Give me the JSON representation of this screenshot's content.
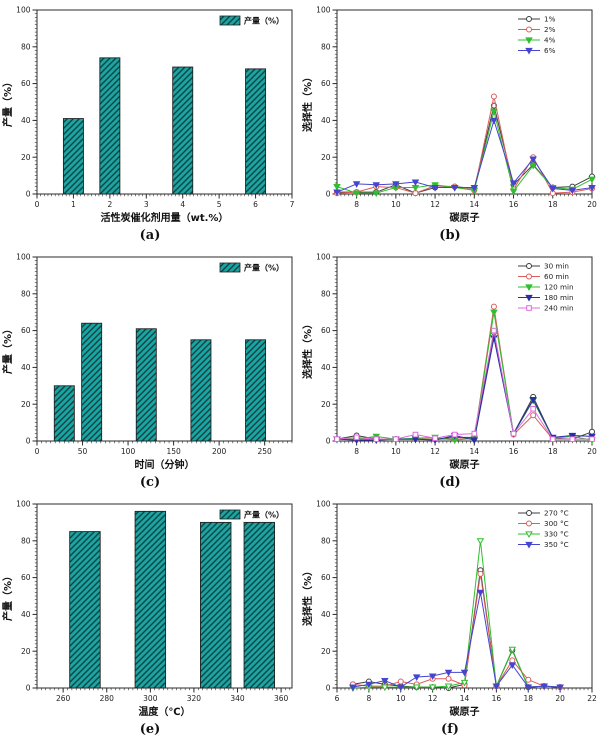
{
  "page": {
    "background": "#ffffff"
  },
  "colors": {
    "bar_fill": "#1aa5a2",
    "bar_hatch": "#0d4344",
    "axis": "#2b2b2b",
    "series_black": "#3c3c3c",
    "series_red": "#dd5c5c",
    "series_green": "#2fbf2f",
    "series_blue": "#4545cf",
    "series_navy": "#2a2fa8",
    "series_magenta": "#e06ae0"
  },
  "chart_data": [
    {
      "id": "a",
      "type": "bar",
      "caption": "(a)",
      "xlabel": "活性炭催化剂用量（wt.%）",
      "ylabel": "产量（%）",
      "legend_label": "产量（%）",
      "legend_position": "top-right",
      "xlim": [
        0,
        7
      ],
      "ylim": [
        0,
        100
      ],
      "grid": false,
      "xticks": [
        0,
        1,
        2,
        3,
        4,
        5,
        6,
        7
      ],
      "yticks": [
        0,
        20,
        40,
        60,
        80,
        100
      ],
      "x_minor": 0.1,
      "y_minor": 2,
      "bar_color": "#1aa5a2",
      "hatch_color": "#0d4344",
      "bars": {
        "x": [
          1,
          2,
          4,
          6
        ],
        "values": [
          41,
          74,
          69,
          68
        ],
        "width": 0.55
      }
    },
    {
      "id": "b",
      "type": "line",
      "caption": "(b)",
      "xlabel": "碳原子",
      "ylabel": "选择性（%）",
      "legend_position": "top-right",
      "xlim": [
        7,
        20
      ],
      "ylim": [
        0,
        100
      ],
      "grid": false,
      "xticks": [
        8,
        10,
        12,
        14,
        16,
        18,
        20
      ],
      "yticks": [
        0,
        20,
        40,
        60,
        80,
        100
      ],
      "x_minor": 0.2,
      "y_minor": 2,
      "x": [
        7,
        8,
        9,
        10,
        11,
        12,
        13,
        14,
        15,
        16,
        17,
        18,
        19,
        20
      ],
      "series": [
        {
          "name": "1%",
          "color": "#3c3c3c",
          "marker": "circle",
          "fill": "open",
          "values": [
            1,
            1,
            1,
            5,
            0.5,
            3.5,
            4,
            3,
            48,
            5,
            16,
            3.5,
            4,
            9.5
          ]
        },
        {
          "name": "2%",
          "color": "#dd5c5c",
          "marker": "circle",
          "fill": "open",
          "values": [
            0.5,
            1,
            4,
            3.5,
            0.5,
            4.5,
            4,
            2,
            53,
            2.5,
            20,
            0.5,
            1,
            3
          ]
        },
        {
          "name": "4%",
          "color": "#2fbf2f",
          "marker": "triangle-down",
          "fill": "filled",
          "values": [
            4,
            0.5,
            0.5,
            3.5,
            3.5,
            5,
            3.5,
            2,
            45,
            1.5,
            15.5,
            3.5,
            2.5,
            8
          ]
        },
        {
          "name": "6%",
          "color": "#4545cf",
          "marker": "triangle-down",
          "fill": "filled",
          "values": [
            1,
            5.5,
            5,
            5.5,
            6.5,
            3.5,
            3.5,
            3.5,
            40,
            6,
            19,
            3,
            2,
            3.5
          ]
        }
      ]
    },
    {
      "id": "c",
      "type": "bar",
      "caption": "(c)",
      "xlabel": "时间（分钟）",
      "ylabel": "产量（%）",
      "legend_label": "产量（%）",
      "legend_position": "top-right",
      "xlim": [
        0,
        280
      ],
      "ylim": [
        0,
        100
      ],
      "grid": false,
      "xticks": [
        0,
        50,
        100,
        150,
        200,
        250
      ],
      "yticks": [
        0,
        20,
        40,
        60,
        80,
        100
      ],
      "x_minor": 5,
      "y_minor": 2,
      "bar_color": "#1aa5a2",
      "hatch_color": "#0d4344",
      "bars": {
        "x": [
          30,
          60,
          120,
          180,
          240
        ],
        "values": [
          30,
          64,
          61,
          55,
          55
        ],
        "width": 22
      }
    },
    {
      "id": "d",
      "type": "line",
      "caption": "(d)",
      "xlabel": "碳原子",
      "ylabel": "选择性（%）",
      "legend_position": "top-right",
      "xlim": [
        7,
        20
      ],
      "ylim": [
        0,
        100
      ],
      "grid": false,
      "xticks": [
        8,
        10,
        12,
        14,
        16,
        18,
        20
      ],
      "yticks": [
        0,
        20,
        40,
        60,
        80,
        100
      ],
      "x_minor": 0.2,
      "y_minor": 2,
      "x": [
        7,
        8,
        9,
        10,
        11,
        12,
        13,
        14,
        15,
        16,
        17,
        18,
        19,
        20
      ],
      "series": [
        {
          "name": "30 min",
          "color": "#3c3c3c",
          "marker": "circle",
          "fill": "open",
          "values": [
            1,
            3,
            1,
            1,
            1,
            1,
            2,
            2,
            59,
            4,
            24,
            1.5,
            1,
            5
          ]
        },
        {
          "name": "60 min",
          "color": "#dd5c5c",
          "marker": "circle",
          "fill": "open",
          "values": [
            1,
            1,
            1,
            1,
            1,
            1,
            1,
            1.5,
            73,
            3.5,
            14,
            1,
            1,
            1
          ]
        },
        {
          "name": "120 min",
          "color": "#2fbf2f",
          "marker": "triangle-down",
          "fill": "filled",
          "values": [
            1,
            1,
            2.5,
            1,
            1.5,
            2,
            0.5,
            1.5,
            70,
            4,
            22,
            1.5,
            2.5,
            0.5
          ]
        },
        {
          "name": "180 min",
          "color": "#2a2fa8",
          "marker": "triangle-down",
          "fill": "filled",
          "values": [
            1,
            0.5,
            0.5,
            1,
            1,
            0.5,
            3,
            0.5,
            56,
            4,
            22.5,
            2,
            3,
            2.5
          ]
        },
        {
          "name": "240 min",
          "color": "#e06ae0",
          "marker": "square",
          "fill": "open",
          "values": [
            1,
            2,
            1,
            1,
            3.5,
            1.5,
            3.5,
            4,
            60,
            4,
            17.5,
            1,
            1,
            1
          ]
        }
      ]
    },
    {
      "id": "e",
      "type": "bar",
      "caption": "(e)",
      "xlabel": "温度（℃）",
      "ylabel": "产量（%）",
      "legend_label": "产量（%）",
      "legend_position": "top-right",
      "xlim": [
        248,
        365
      ],
      "ylim": [
        0,
        100
      ],
      "grid": false,
      "xticks": [
        260,
        280,
        300,
        320,
        340,
        360
      ],
      "yticks": [
        0,
        20,
        40,
        60,
        80,
        100
      ],
      "x_minor": 2,
      "y_minor": 2,
      "bar_color": "#1aa5a2",
      "hatch_color": "#0d4344",
      "bars": {
        "x": [
          270,
          300,
          330,
          350
        ],
        "values": [
          85,
          96,
          90,
          90
        ],
        "width": 14
      }
    },
    {
      "id": "f",
      "type": "line",
      "caption": "(f)",
      "xlabel": "碳原子",
      "ylabel": "选择性（%）",
      "legend_position": "top-right",
      "xlim": [
        6,
        22
      ],
      "ylim": [
        0,
        100
      ],
      "grid": false,
      "xticks": [
        6,
        8,
        10,
        12,
        14,
        16,
        18,
        20,
        22
      ],
      "yticks": [
        0,
        20,
        40,
        60,
        80,
        100
      ],
      "x_minor": 0.25,
      "y_minor": 2,
      "x": [
        7,
        8,
        9,
        10,
        11,
        12,
        13,
        14,
        15,
        16,
        17,
        18,
        19,
        20
      ],
      "series": [
        {
          "name": "270 °C",
          "color": "#3c3c3c",
          "marker": "circle",
          "fill": "open",
          "values": [
            2,
            3.5,
            2,
            1,
            0.5,
            0.5,
            0,
            2,
            64,
            1,
            20.5,
            0.5,
            1,
            0.5
          ]
        },
        {
          "name": "300 °C",
          "color": "#dd5c5c",
          "marker": "circle",
          "fill": "open",
          "values": [
            2,
            1,
            1,
            3.5,
            2,
            5,
            5,
            1.5,
            62,
            1,
            15,
            4.5,
            1,
            0.5
          ]
        },
        {
          "name": "330 °C",
          "color": "#2fbf2f",
          "marker": "triangle-down",
          "fill": "open",
          "values": [
            0,
            0.5,
            0.5,
            0.5,
            0.5,
            0.5,
            1,
            3,
            80,
            1,
            21,
            0.5,
            1,
            0.5
          ]
        },
        {
          "name": "350 °C",
          "color": "#4545cf",
          "marker": "triangle-down",
          "fill": "filled",
          "values": [
            0.5,
            2,
            4,
            0.5,
            6,
            6.5,
            8.5,
            8.5,
            52,
            1,
            12.5,
            0.5,
            1,
            0.5
          ]
        }
      ]
    }
  ]
}
